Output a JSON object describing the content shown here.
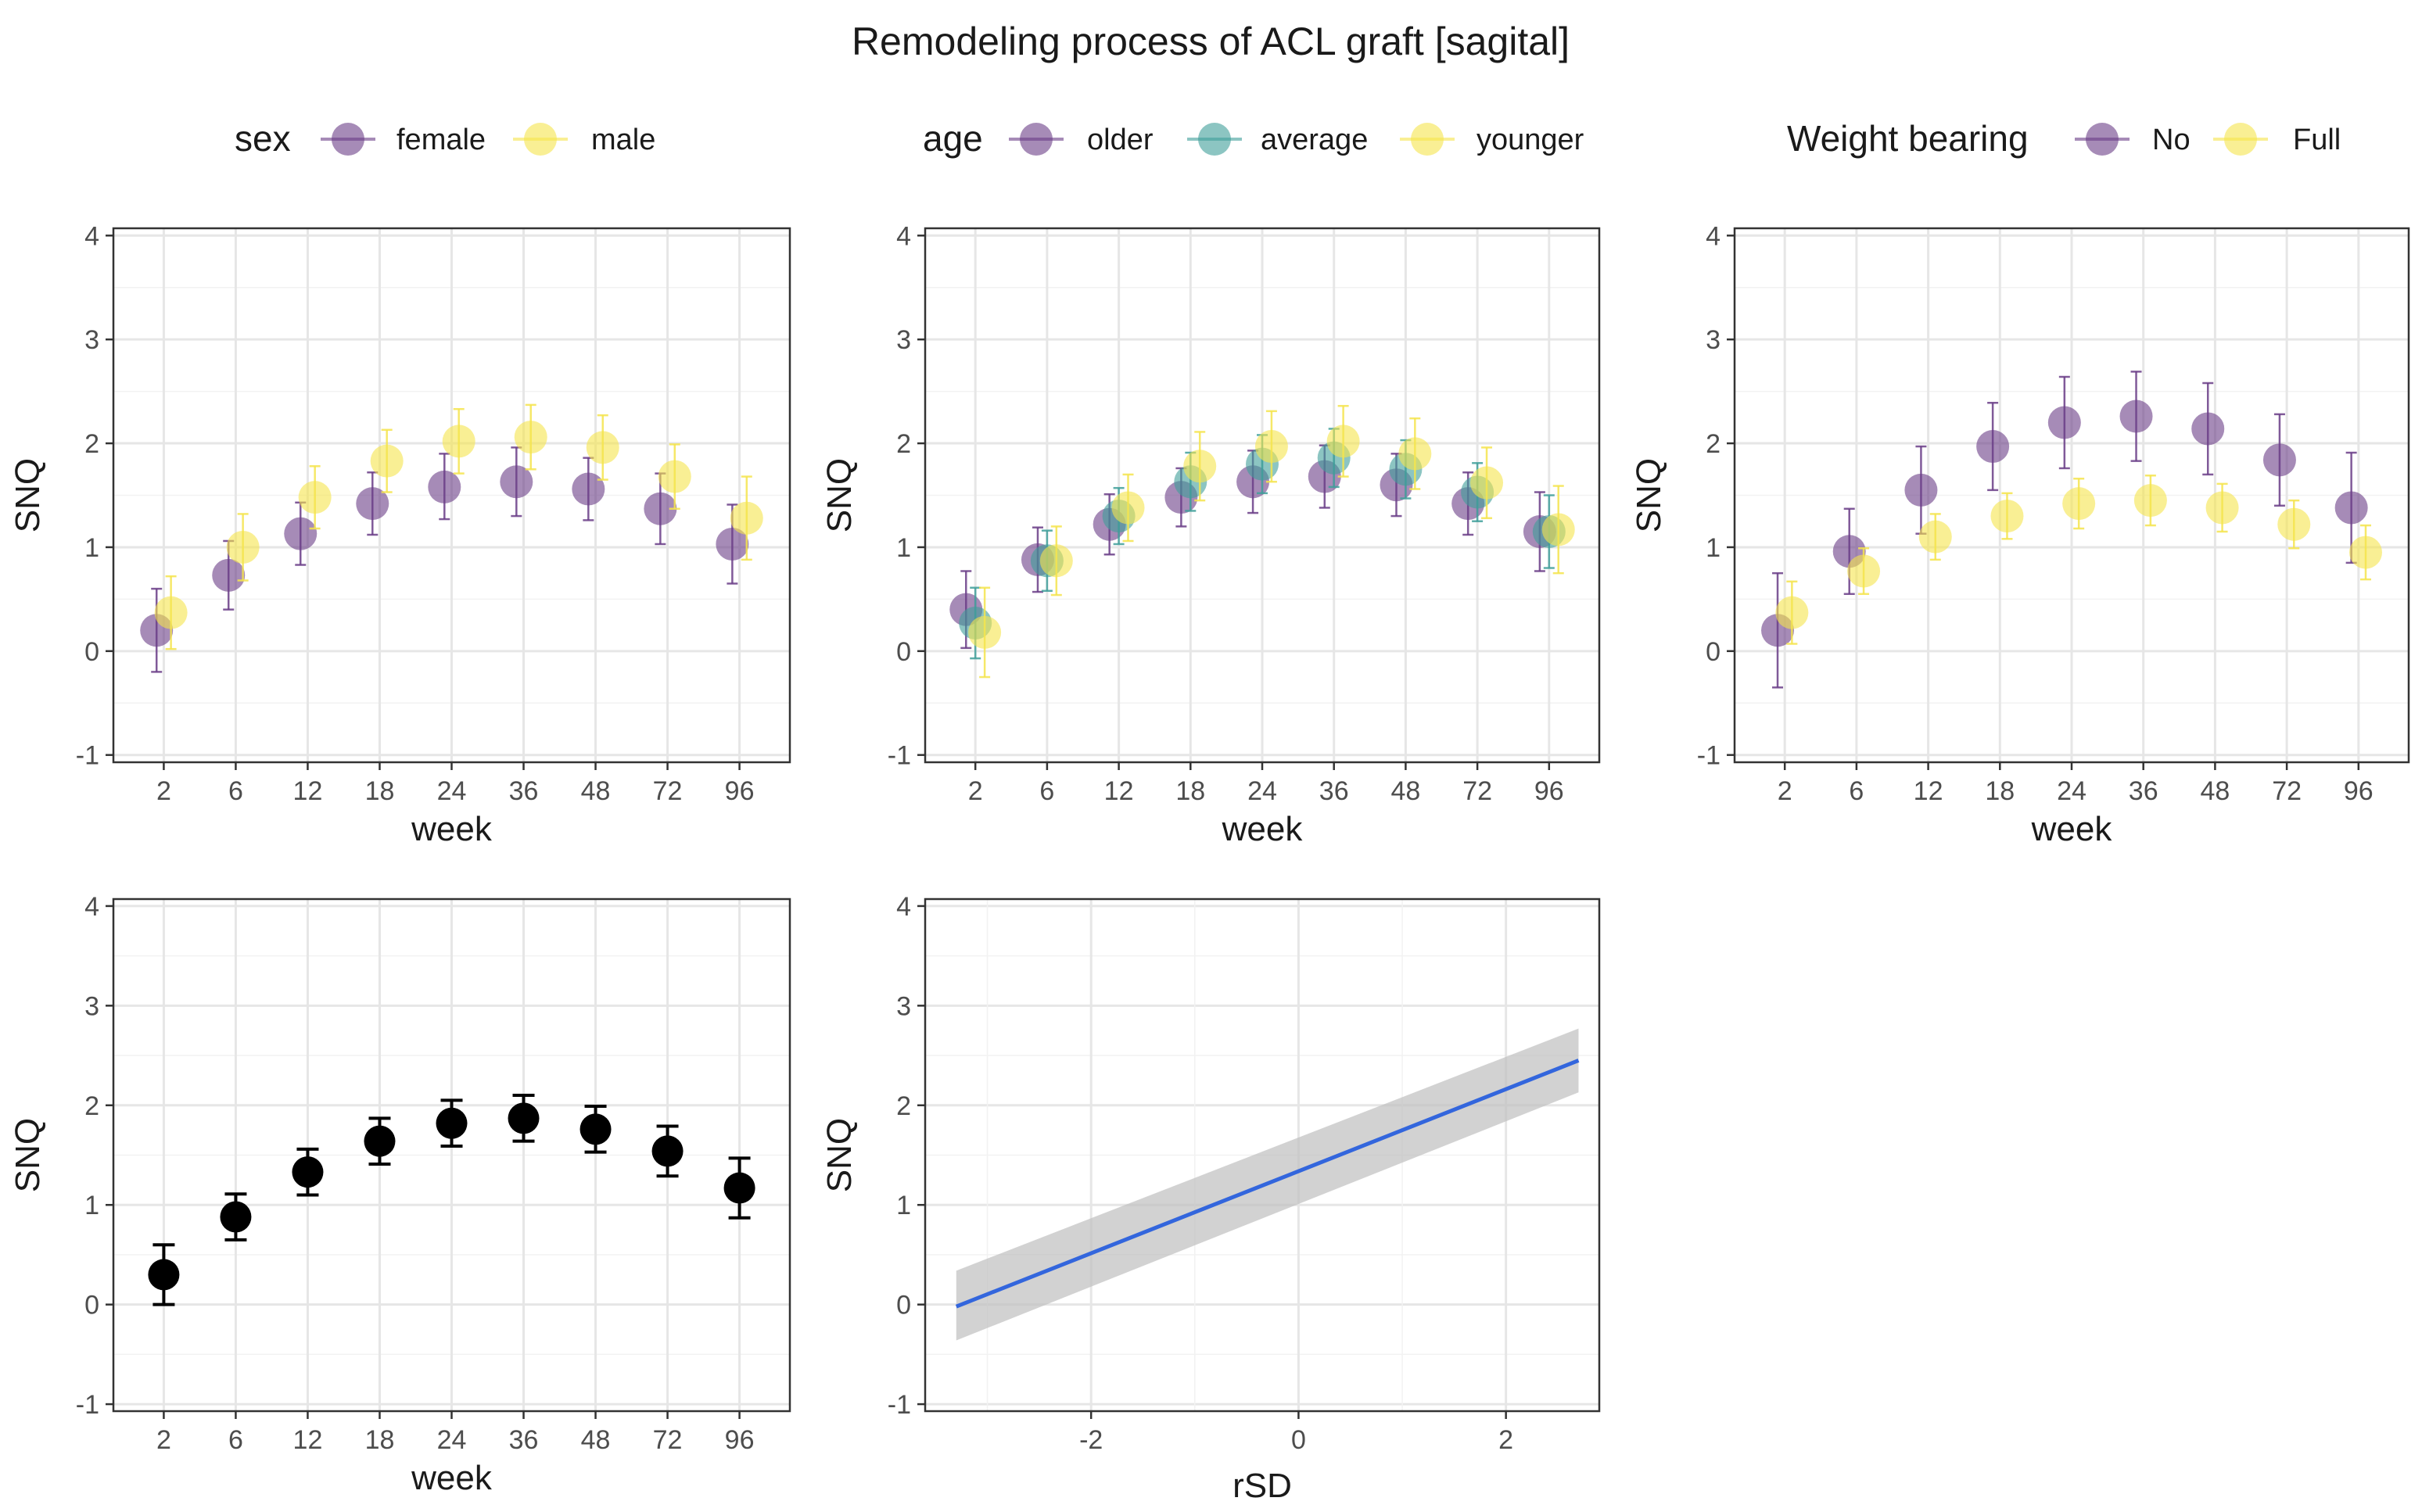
{
  "title": "Remodeling process of ACL graft [sagital]",
  "chart_data": [
    {
      "id": "sex",
      "type": "scatter",
      "error_bars": true,
      "legend_title": "sex",
      "xlabel": "week",
      "ylabel": "SNQ",
      "categories": [
        "2",
        "6",
        "12",
        "18",
        "24",
        "36",
        "48",
        "72",
        "96"
      ],
      "ylim": [
        -1,
        4
      ],
      "yticks": [
        -1,
        0,
        1,
        2,
        3,
        4
      ],
      "series": [
        {
          "name": "female",
          "color": "#6a3d87",
          "opacity": 0.6,
          "offset": -0.1,
          "values": [
            0.2,
            0.73,
            1.13,
            1.42,
            1.58,
            1.63,
            1.56,
            1.37,
            1.03
          ],
          "lower": [
            -0.2,
            0.4,
            0.83,
            1.12,
            1.27,
            1.3,
            1.26,
            1.03,
            0.65
          ],
          "upper": [
            0.6,
            1.06,
            1.43,
            1.72,
            1.9,
            1.96,
            1.86,
            1.71,
            1.41
          ]
        },
        {
          "name": "male",
          "color": "#f5e44d",
          "opacity": 0.6,
          "offset": 0.1,
          "values": [
            0.37,
            1.0,
            1.48,
            1.83,
            2.02,
            2.06,
            1.96,
            1.68,
            1.28
          ],
          "lower": [
            0.02,
            0.68,
            1.18,
            1.53,
            1.71,
            1.75,
            1.65,
            1.37,
            0.88
          ],
          "upper": [
            0.72,
            1.32,
            1.78,
            2.13,
            2.33,
            2.37,
            2.27,
            1.99,
            1.68
          ]
        }
      ]
    },
    {
      "id": "age",
      "type": "scatter",
      "error_bars": true,
      "legend_title": "age",
      "xlabel": "week",
      "ylabel": "SNQ",
      "categories": [
        "2",
        "6",
        "12",
        "18",
        "24",
        "36",
        "48",
        "72",
        "96"
      ],
      "ylim": [
        -1,
        4
      ],
      "yticks": [
        -1,
        0,
        1,
        2,
        3,
        4
      ],
      "series": [
        {
          "name": "older",
          "color": "#6a3d87",
          "opacity": 0.6,
          "offset": -0.13,
          "values": [
            0.4,
            0.88,
            1.22,
            1.48,
            1.63,
            1.68,
            1.6,
            1.42,
            1.15
          ],
          "lower": [
            0.03,
            0.57,
            0.93,
            1.2,
            1.33,
            1.38,
            1.3,
            1.12,
            0.77
          ],
          "upper": [
            0.77,
            1.19,
            1.51,
            1.76,
            1.93,
            1.98,
            1.9,
            1.72,
            1.53
          ]
        },
        {
          "name": "average",
          "color": "#3f9f9a",
          "opacity": 0.6,
          "offset": 0.0,
          "values": [
            0.27,
            0.87,
            1.3,
            1.63,
            1.8,
            1.86,
            1.75,
            1.53,
            1.15
          ],
          "lower": [
            -0.07,
            0.58,
            1.03,
            1.35,
            1.52,
            1.58,
            1.47,
            1.25,
            0.8
          ],
          "upper": [
            0.61,
            1.16,
            1.57,
            1.91,
            2.08,
            2.14,
            2.03,
            1.81,
            1.5
          ]
        },
        {
          "name": "younger",
          "color": "#f5e44d",
          "opacity": 0.6,
          "offset": 0.13,
          "values": [
            0.18,
            0.87,
            1.38,
            1.78,
            1.97,
            2.02,
            1.9,
            1.62,
            1.17
          ],
          "lower": [
            -0.25,
            0.54,
            1.06,
            1.45,
            1.63,
            1.68,
            1.56,
            1.28,
            0.75
          ],
          "upper": [
            0.61,
            1.2,
            1.7,
            2.11,
            2.31,
            2.36,
            2.24,
            1.96,
            1.59
          ]
        }
      ]
    },
    {
      "id": "weight",
      "type": "scatter",
      "error_bars": true,
      "legend_title": "Weight bearing",
      "xlabel": "week",
      "ylabel": "SNQ",
      "categories": [
        "2",
        "6",
        "12",
        "18",
        "24",
        "36",
        "48",
        "72",
        "96"
      ],
      "ylim": [
        -1,
        4
      ],
      "yticks": [
        -1,
        0,
        1,
        2,
        3,
        4
      ],
      "series": [
        {
          "name": "No",
          "color": "#6a3d87",
          "opacity": 0.6,
          "offset": -0.1,
          "values": [
            0.2,
            0.96,
            1.55,
            1.97,
            2.2,
            2.26,
            2.14,
            1.84,
            1.38
          ],
          "lower": [
            -0.35,
            0.55,
            1.13,
            1.55,
            1.76,
            1.83,
            1.7,
            1.4,
            0.85
          ],
          "upper": [
            0.75,
            1.37,
            1.97,
            2.39,
            2.64,
            2.69,
            2.58,
            2.28,
            1.91
          ]
        },
        {
          "name": "Full",
          "color": "#f5e44d",
          "opacity": 0.6,
          "offset": 0.1,
          "values": [
            0.37,
            0.77,
            1.1,
            1.3,
            1.42,
            1.45,
            1.38,
            1.22,
            0.95
          ],
          "lower": [
            0.07,
            0.55,
            0.88,
            1.08,
            1.18,
            1.21,
            1.15,
            0.99,
            0.69
          ],
          "upper": [
            0.67,
            0.99,
            1.32,
            1.52,
            1.66,
            1.69,
            1.61,
            1.45,
            1.21
          ]
        }
      ]
    },
    {
      "id": "overall",
      "type": "scatter",
      "error_bars": true,
      "xlabel": "week",
      "ylabel": "SNQ",
      "categories": [
        "2",
        "6",
        "12",
        "18",
        "24",
        "36",
        "48",
        "72",
        "96"
      ],
      "ylim": [
        -1,
        4
      ],
      "yticks": [
        -1,
        0,
        1,
        2,
        3,
        4
      ],
      "series": [
        {
          "name": "overall",
          "color": "#000000",
          "opacity": 1,
          "offset": 0,
          "values": [
            0.3,
            0.88,
            1.33,
            1.64,
            1.82,
            1.87,
            1.76,
            1.54,
            1.17
          ],
          "lower": [
            0.0,
            0.65,
            1.1,
            1.41,
            1.59,
            1.64,
            1.53,
            1.29,
            0.87
          ],
          "upper": [
            0.6,
            1.11,
            1.56,
            1.87,
            2.05,
            2.1,
            1.99,
            1.79,
            1.47
          ]
        }
      ]
    },
    {
      "id": "rsd",
      "type": "line",
      "xlabel": "rSD",
      "ylabel": "SNQ",
      "xlim": [
        -3.6,
        2.9
      ],
      "xticks": [
        -2,
        0,
        2
      ],
      "ylim": [
        -1,
        4
      ],
      "yticks": [
        -1,
        0,
        1,
        2,
        3,
        4
      ],
      "line_color": "#3366dd",
      "band_color": "#bfbfbf",
      "x": [
        -3.3,
        2.7
      ],
      "y": [
        -0.02,
        2.45
      ],
      "ci_lower": [
        -0.36,
        2.13
      ],
      "ci_upper": [
        0.34,
        2.77
      ]
    }
  ]
}
